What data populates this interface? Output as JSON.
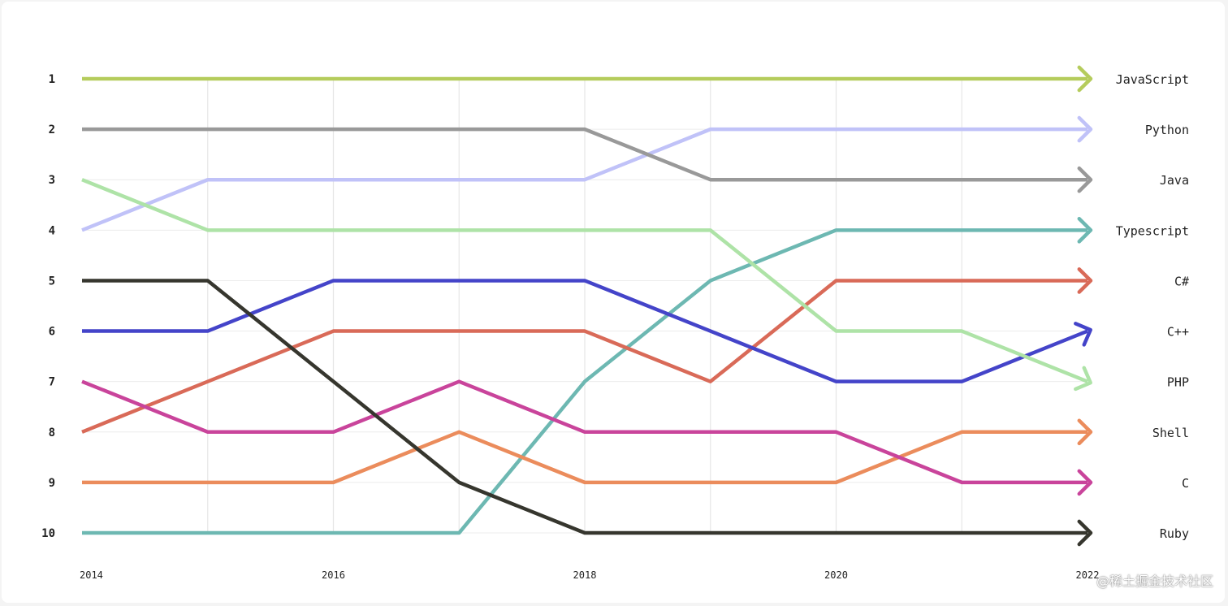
{
  "chart_data": {
    "type": "line",
    "title": "",
    "xlabel": "",
    "ylabel": "",
    "x": [
      2014,
      2015,
      2016,
      2017,
      2018,
      2019,
      2020,
      2021,
      2022
    ],
    "x_tick_labels": [
      "2014",
      "2016",
      "2018",
      "2020",
      "2022"
    ],
    "y_tick_labels": [
      "1",
      "2",
      "3",
      "4",
      "5",
      "6",
      "7",
      "8",
      "9",
      "10"
    ],
    "ylim": [
      1,
      10
    ],
    "y_inverted": true,
    "grid": "vertical and horizontal",
    "series": [
      {
        "name": "JavaScript",
        "color": "#b5cc5c",
        "values": [
          1,
          1,
          1,
          1,
          1,
          1,
          1,
          1,
          1
        ]
      },
      {
        "name": "Python",
        "color": "#c0c2f8",
        "values": [
          4,
          3,
          3,
          3,
          3,
          2,
          2,
          2,
          2
        ]
      },
      {
        "name": "Java",
        "color": "#999999",
        "values": [
          2,
          2,
          2,
          2,
          2,
          3,
          3,
          3,
          3
        ]
      },
      {
        "name": "Typescript",
        "color": "#6db8b2",
        "values": [
          10,
          10,
          10,
          10,
          7,
          5,
          4,
          4,
          4
        ]
      },
      {
        "name": "C#",
        "color": "#d96a58",
        "values": [
          8,
          7,
          6,
          6,
          6,
          7,
          5,
          5,
          5
        ]
      },
      {
        "name": "C++",
        "color": "#4444c9",
        "values": [
          6,
          6,
          5,
          5,
          5,
          6,
          7,
          7,
          6
        ]
      },
      {
        "name": "PHP",
        "color": "#aee3a7",
        "values": [
          3,
          4,
          4,
          4,
          4,
          4,
          6,
          6,
          7
        ]
      },
      {
        "name": "Shell",
        "color": "#eb8c5c",
        "values": [
          9,
          9,
          9,
          8,
          9,
          9,
          9,
          8,
          8
        ]
      },
      {
        "name": "C",
        "color": "#c9449b",
        "values": [
          7,
          8,
          8,
          7,
          8,
          8,
          8,
          9,
          9
        ]
      },
      {
        "name": "Ruby",
        "color": "#36362e",
        "values": [
          5,
          5,
          7,
          9,
          10,
          10,
          10,
          10,
          10
        ]
      }
    ]
  },
  "watermark": "@稀土掘金技术社区"
}
